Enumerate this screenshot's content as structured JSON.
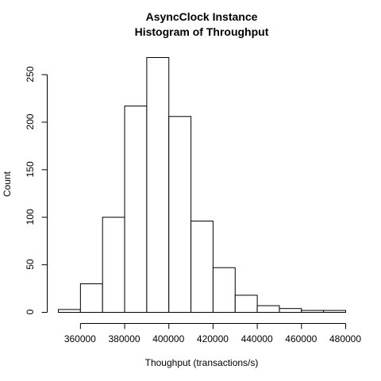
{
  "chart_data": {
    "type": "bar",
    "title": [
      "AsyncClock Instance",
      "Histogram of Throughput"
    ],
    "xlabel": "Thoughput (transactions/s)",
    "ylabel": "Count",
    "bins": [
      {
        "start": 350000,
        "end": 360000,
        "count": 3
      },
      {
        "start": 360000,
        "end": 370000,
        "count": 30
      },
      {
        "start": 370000,
        "end": 380000,
        "count": 100
      },
      {
        "start": 380000,
        "end": 390000,
        "count": 217
      },
      {
        "start": 390000,
        "end": 400000,
        "count": 268
      },
      {
        "start": 400000,
        "end": 410000,
        "count": 206
      },
      {
        "start": 410000,
        "end": 420000,
        "count": 96
      },
      {
        "start": 420000,
        "end": 430000,
        "count": 47
      },
      {
        "start": 430000,
        "end": 440000,
        "count": 18
      },
      {
        "start": 440000,
        "end": 450000,
        "count": 7
      },
      {
        "start": 450000,
        "end": 460000,
        "count": 4
      },
      {
        "start": 460000,
        "end": 470000,
        "count": 2
      },
      {
        "start": 470000,
        "end": 480000,
        "count": 2
      }
    ],
    "xlim": [
      350000,
      480000
    ],
    "ylim": [
      0,
      268
    ],
    "xticks": [
      {
        "value": 360000,
        "label": "360000"
      },
      {
        "value": 380000,
        "label": "380000"
      },
      {
        "value": 400000,
        "label": "400000"
      },
      {
        "value": 420000,
        "label": "420000"
      },
      {
        "value": 440000,
        "label": "440000"
      },
      {
        "value": 460000,
        "label": "460000"
      },
      {
        "value": 480000,
        "label": "480000"
      }
    ],
    "yticks": [
      {
        "value": 0,
        "label": "0"
      },
      {
        "value": 50,
        "label": "50"
      },
      {
        "value": 100,
        "label": "100"
      },
      {
        "value": 150,
        "label": "150"
      },
      {
        "value": 200,
        "label": "200"
      },
      {
        "value": 250,
        "label": "250"
      }
    ],
    "colors": {
      "bar_fill": "#ffffff",
      "bar_stroke": "#000000",
      "axis": "#000000"
    }
  }
}
